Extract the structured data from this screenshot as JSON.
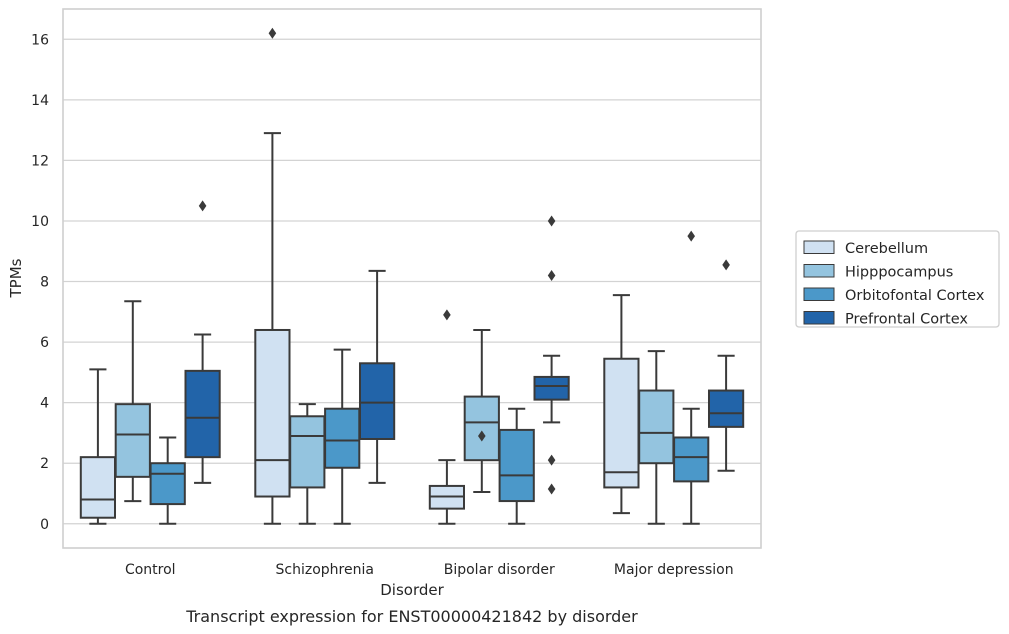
{
  "chart_data": {
    "type": "boxplot",
    "caption": "Transcript expression for ENST00000421842 by disorder",
    "xlabel": "Disorder",
    "ylabel": "TPMs",
    "ylim": [
      -0.8,
      17
    ],
    "yticks": [
      0,
      2,
      4,
      6,
      8,
      10,
      12,
      14,
      16
    ],
    "grid": "horizontal",
    "legend_position": "right",
    "categories": [
      "Control",
      "Schizophrenia",
      "Bipolar disorder",
      "Major depression"
    ],
    "series": [
      {
        "name": "Cerebellum",
        "color": "#d0e1f2",
        "boxes": [
          {
            "whisker_low": 0.0,
            "q1": 0.2,
            "median": 0.8,
            "q3": 2.2,
            "whisker_high": 5.1,
            "outliers": []
          },
          {
            "whisker_low": 0.0,
            "q1": 0.9,
            "median": 2.1,
            "q3": 6.4,
            "whisker_high": 12.9,
            "outliers": [
              16.2
            ]
          },
          {
            "whisker_low": 0.0,
            "q1": 0.5,
            "median": 0.9,
            "q3": 1.25,
            "whisker_high": 2.1,
            "outliers": [
              6.9
            ]
          },
          {
            "whisker_low": 0.35,
            "q1": 1.2,
            "median": 1.7,
            "q3": 5.45,
            "whisker_high": 7.55,
            "outliers": []
          }
        ]
      },
      {
        "name": "Hipppocampus",
        "color": "#94c4df",
        "boxes": [
          {
            "whisker_low": 0.75,
            "q1": 1.55,
            "median": 2.95,
            "q3": 3.95,
            "whisker_high": 7.35,
            "outliers": []
          },
          {
            "whisker_low": 0.0,
            "q1": 1.2,
            "median": 2.9,
            "q3": 3.55,
            "whisker_high": 3.95,
            "outliers": []
          },
          {
            "whisker_low": 1.05,
            "q1": 2.1,
            "median": 3.35,
            "q3": 4.2,
            "whisker_high": 6.4,
            "outliers": [
              2.9
            ]
          },
          {
            "whisker_low": 0.0,
            "q1": 2.0,
            "median": 3.0,
            "q3": 4.4,
            "whisker_high": 5.7,
            "outliers": []
          }
        ]
      },
      {
        "name": "Orbitofontal Cortex",
        "color": "#4b98c9",
        "boxes": [
          {
            "whisker_low": 0.0,
            "q1": 0.65,
            "median": 1.65,
            "q3": 2.0,
            "whisker_high": 2.85,
            "outliers": []
          },
          {
            "whisker_low": 0.0,
            "q1": 1.85,
            "median": 2.75,
            "q3": 3.8,
            "whisker_high": 5.75,
            "outliers": []
          },
          {
            "whisker_low": 0.0,
            "q1": 0.75,
            "median": 1.6,
            "q3": 3.1,
            "whisker_high": 3.8,
            "outliers": []
          },
          {
            "whisker_low": 0.0,
            "q1": 1.4,
            "median": 2.2,
            "q3": 2.85,
            "whisker_high": 3.8,
            "outliers": [
              9.5
            ]
          }
        ]
      },
      {
        "name": "Prefrontal Cortex",
        "color": "#2264a9",
        "boxes": [
          {
            "whisker_low": 1.35,
            "q1": 2.2,
            "median": 3.5,
            "q3": 5.05,
            "whisker_high": 6.25,
            "outliers": [
              10.5
            ]
          },
          {
            "whisker_low": 1.35,
            "q1": 2.8,
            "median": 4.0,
            "q3": 5.3,
            "whisker_high": 8.35,
            "outliers": []
          },
          {
            "whisker_low": 3.35,
            "q1": 4.1,
            "median": 4.55,
            "q3": 4.85,
            "whisker_high": 5.55,
            "outliers": [
              1.15,
              2.1,
              8.2,
              10.0
            ]
          },
          {
            "whisker_low": 1.75,
            "q1": 3.2,
            "median": 3.65,
            "q3": 4.4,
            "whisker_high": 5.55,
            "outliers": [
              8.55
            ]
          }
        ]
      }
    ]
  }
}
